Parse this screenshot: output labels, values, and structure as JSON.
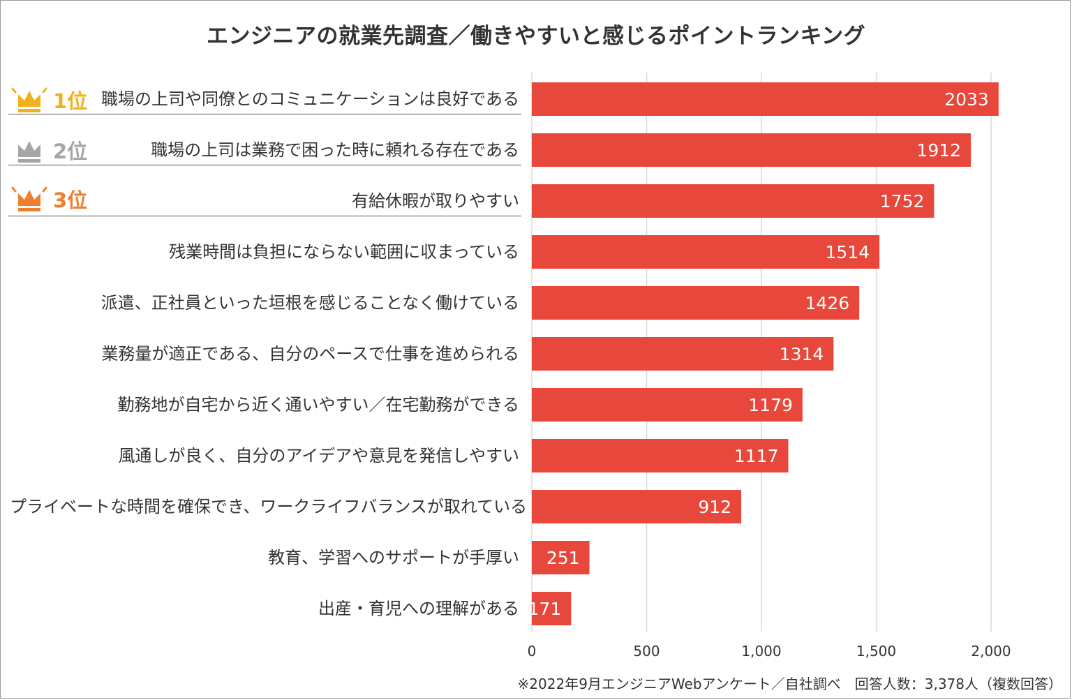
{
  "colors": {
    "bar": "#e8483b",
    "bar_label": "#ffffff",
    "grid": "#d9d9d9",
    "gold": "#f2b01e",
    "silver": "#a6a6a6",
    "bronze": "#ee7f2d"
  },
  "ranks": [
    {
      "label": "1位",
      "icon": "crown-gold-icon"
    },
    {
      "label": "2位",
      "icon": "crown-silver-icon"
    },
    {
      "label": "3位",
      "icon": "crown-bronze-icon"
    }
  ],
  "footnote": "※2022年9月エンジニアWebアンケート／自社調べ　回答人数：3,378人（複数回答）",
  "chart_data": {
    "type": "bar",
    "orientation": "horizontal",
    "title": "エンジニアの就業先調査／働きやすいと感じるポイントランキング",
    "xlabel": "",
    "ylabel": "",
    "xlim": [
      0,
      2000
    ],
    "grid": true,
    "categories": [
      "職場の上司や同僚とのコミュニケーションは良好である",
      "職場の上司は業務で困った時に頼れる存在である",
      "有給休暇が取りやすい",
      "残業時間は負担にならない範囲に収まっている",
      "派遣、正社員といった垣根を感じることなく働けている",
      "業務量が適正である、自分のペースで仕事を進められる",
      "勤務地が自宅から近く通いやすい／在宅勤務ができる",
      "風通しが良く、自分のアイデアや意見を発信しやすい",
      "プライベートな時間を確保でき、ワークライフバランスが取れている",
      "教育、学習へのサポートが手厚い",
      "出産・育児への理解がある"
    ],
    "values": [
      2033,
      1912,
      1752,
      1514,
      1426,
      1314,
      1179,
      1117,
      912,
      251,
      171
    ],
    "ticks": [
      0,
      500,
      1000,
      1500,
      2000
    ],
    "tick_labels": [
      "0",
      "500",
      "1,000",
      "1,500",
      "2,000"
    ]
  }
}
